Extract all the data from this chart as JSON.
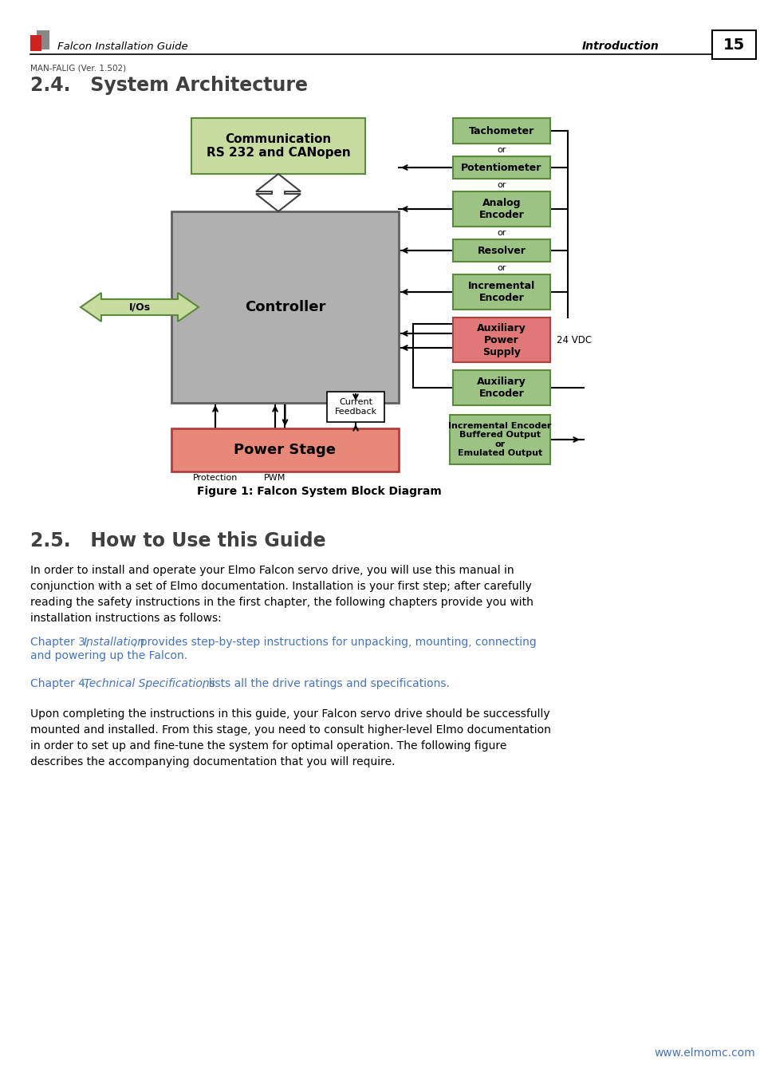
{
  "page_title": "Falcon Installation Guide",
  "page_header_right": "Introduction",
  "page_number": "15",
  "page_sub_header": "MAN-FALIG (Ver. 1.502)",
  "section_24_title": "2.4.   System Architecture",
  "figure_caption": "Figure 1: Falcon System Block Diagram",
  "section_25_title": "2.5.   How to Use this Guide",
  "body_text_1": "In order to install and operate your Elmo Falcon servo drive, you will use this manual in\nconjunction with a set of Elmo documentation. Installation is your first step; after carefully\nreading the safety instructions in the first chapter, the following chapters provide you with\ninstallation instructions as follows:",
  "link_text_1_prefix": "Chapter 3, ",
  "link_text_1_italic": "Installation",
  "link_text_1_suffix": ", provides step-by-step instructions for unpacking, mounting, connecting\nand powering up the Falcon.",
  "link_text_2_prefix": "Chapter 4, ",
  "link_text_2_italic": "Technical Specifications",
  "link_text_2_suffix": ", lists all the drive ratings and specifications.",
  "body_text_2": "Upon completing the instructions in this guide, your Falcon servo drive should be successfully\nmounted and installed. From this stage, you need to consult higher-level Elmo documentation\nin order to set up and fine-tune the system for optimal operation. The following figure\ndescribes the accompanying documentation that you will require.",
  "footer_url": "www.elmomc.com",
  "bg_color": "#ffffff",
  "link_color": "#4472C4",
  "box_green_fill": "#9DC384",
  "box_green_border": "#5a8a3a",
  "box_red_fill": "#E07878",
  "box_red_border": "#b04040",
  "box_gray_fill": "#B0B0B0",
  "box_gray_border": "#606060",
  "box_comm_fill": "#c8dca0",
  "box_comm_border": "#5a8a3a",
  "box_power_fill": "#E88878",
  "box_power_border": "#b04040",
  "box_ios_fill": "#c8dca0",
  "box_ios_border": "#5a8a3a"
}
